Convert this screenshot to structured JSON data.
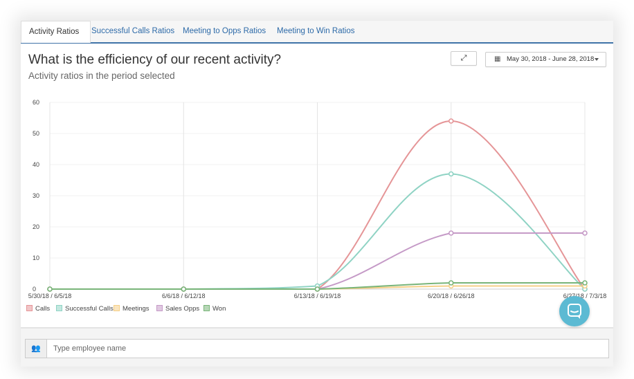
{
  "tabs": [
    {
      "label": "Activity Ratios",
      "active": true
    },
    {
      "label": "Successful Calls Ratios",
      "active": false
    },
    {
      "label": "Meeting to Opps Ratios",
      "active": false
    },
    {
      "label": "Meeting to Win Ratios",
      "active": false
    }
  ],
  "header": {
    "title": "What is the efficiency of our recent activity?",
    "subtitle": "Activity ratios in the period selected"
  },
  "toolbar": {
    "expand_icon": "expand-arrows-icon",
    "date_range_label": "May 30, 2018 - June 28, 2018",
    "calendar_icon": "calendar-icon"
  },
  "chart_data": {
    "type": "line",
    "categories": [
      "5/30/18 / 6/5/18",
      "6/6/18 / 6/12/18",
      "6/13/18 / 6/19/18",
      "6/20/18 / 6/26/18",
      "6/27/18 / 7/3/18"
    ],
    "ylim": [
      0,
      60
    ],
    "yticks": [
      0,
      10,
      20,
      30,
      40,
      50,
      60
    ],
    "grid": true,
    "legend_position": "bottom-left",
    "series": [
      {
        "name": "Calls",
        "color": "#e59597",
        "values": [
          0,
          0,
          0,
          54,
          0
        ]
      },
      {
        "name": "Successful Calls",
        "color": "#8fd3c4",
        "values": [
          0,
          0,
          1,
          37,
          0
        ]
      },
      {
        "name": "Meetings",
        "color": "#f5cf87",
        "values": [
          0,
          0,
          0,
          1,
          1
        ]
      },
      {
        "name": "Sales Opps",
        "color": "#c59ac7",
        "values": [
          0,
          0,
          0,
          18,
          18
        ]
      },
      {
        "name": "Won",
        "color": "#78b478",
        "values": [
          0,
          0,
          0,
          2,
          2
        ]
      }
    ]
  },
  "footer": {
    "employee_placeholder": "Type employee name",
    "users_icon": "users-icon",
    "chat_icon": "chat-bubble-icon"
  }
}
